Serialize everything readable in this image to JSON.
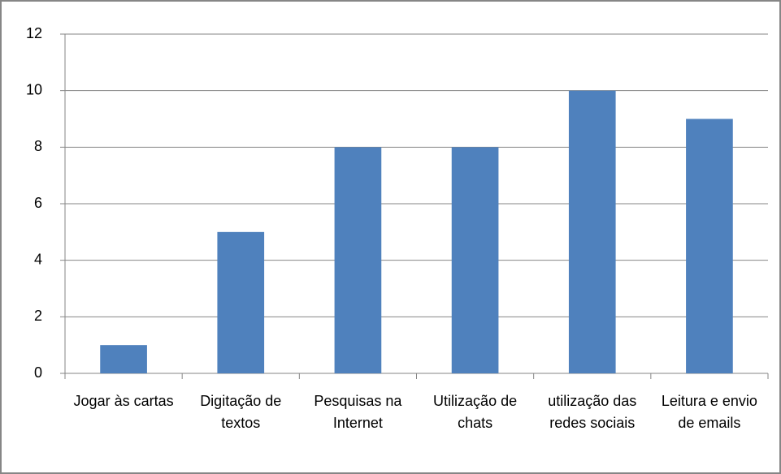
{
  "chart_data": {
    "type": "bar",
    "categories": [
      "Jogar às cartas",
      "Digitação de textos",
      "Pesquisas na Internet",
      "Utilização de chats",
      "utilização das redes sociais",
      "Leitura e envio de emails"
    ],
    "values": [
      1,
      5,
      8,
      8,
      10,
      9
    ],
    "color": "#4f81bd",
    "ylim": [
      0,
      12
    ],
    "yticks": [
      0,
      2,
      4,
      6,
      8,
      10,
      12
    ],
    "grid": true
  }
}
